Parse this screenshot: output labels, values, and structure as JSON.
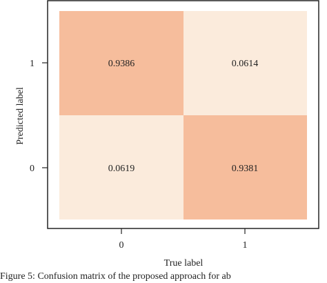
{
  "caption": "Figure 5: Confusion matrix of the proposed approach for ab",
  "colors": {
    "high": "#f6bd9c",
    "low": "#fbebdc",
    "frame": "#222222",
    "text": "#222222"
  },
  "chart_data": {
    "type": "heatmap",
    "title": "",
    "xlabel": "True label",
    "ylabel": "Predicted label",
    "x_categories": [
      "0",
      "1"
    ],
    "y_categories": [
      "1",
      "0"
    ],
    "values": [
      [
        0.9386,
        0.0614
      ],
      [
        0.0619,
        0.9381
      ]
    ],
    "value_labels": [
      [
        "0.9386",
        "0.0614"
      ],
      [
        "0.0619",
        "0.9381"
      ]
    ],
    "grid": false,
    "legend": "none"
  }
}
